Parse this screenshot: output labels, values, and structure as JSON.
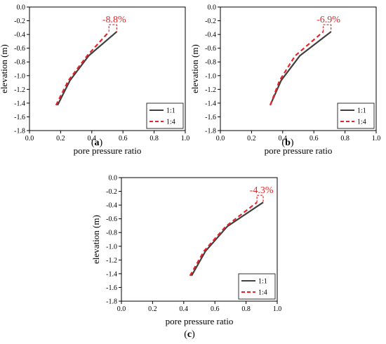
{
  "colors": {
    "series_1_1": "#404040",
    "series_1_4": "#e8242a",
    "annotation": "#e8242a"
  },
  "chart_data": [
    {
      "type": "line",
      "panel_label": "a",
      "xlabel": "pore pressure ratio",
      "ylabel": "elevation (m)",
      "xlim": [
        0.0,
        1.0
      ],
      "ylim": [
        -1.8,
        0.0
      ],
      "xticks": [
        "0.0",
        "0.2",
        "0.4",
        "0.6",
        "0.8",
        "1.0"
      ],
      "yticks": [
        "0.0",
        "-0.2",
        "-0.4",
        "-0.6",
        "-0.8",
        "-1.0",
        "-1.2",
        "-1.4",
        "-1.6",
        "-1.8"
      ],
      "legend_position": "lower-right",
      "grid": false,
      "series": [
        {
          "name": "1:1",
          "style": "solid",
          "x": [
            0.18,
            0.26,
            0.38,
            0.56
          ],
          "y": [
            -1.43,
            -1.07,
            -0.71,
            -0.36
          ]
        },
        {
          "name": "1:4",
          "style": "dashed",
          "x": [
            0.17,
            0.25,
            0.37,
            0.51
          ],
          "y": [
            -1.43,
            -1.07,
            -0.71,
            -0.36
          ]
        }
      ],
      "annotation": {
        "text": "-8.8%",
        "x1": 0.51,
        "x2": 0.56,
        "y": -0.36
      }
    },
    {
      "type": "line",
      "panel_label": "b",
      "xlabel": "pore pressure ratio",
      "ylabel": "elevation (m)",
      "xlim": [
        0.0,
        1.0
      ],
      "ylim": [
        -1.8,
        0.0
      ],
      "xticks": [
        "0.0",
        "0.2",
        "0.4",
        "0.6",
        "0.8",
        "1.0"
      ],
      "yticks": [
        "0.0",
        "-0.2",
        "-0.4",
        "-0.6",
        "-0.8",
        "-1.0",
        "-1.2",
        "-1.4",
        "-1.6",
        "-1.8"
      ],
      "legend_position": "lower-right",
      "grid": false,
      "series": [
        {
          "name": "1:1",
          "style": "solid",
          "x": [
            0.32,
            0.39,
            0.51,
            0.71
          ],
          "y": [
            -1.43,
            -1.07,
            -0.71,
            -0.36
          ]
        },
        {
          "name": "1:4",
          "style": "dashed",
          "x": [
            0.32,
            0.38,
            0.48,
            0.66
          ],
          "y": [
            -1.43,
            -1.07,
            -0.71,
            -0.36
          ]
        }
      ],
      "annotation": {
        "text": "-6.9%",
        "x1": 0.66,
        "x2": 0.71,
        "y": -0.36
      }
    },
    {
      "type": "line",
      "panel_label": "c",
      "xlabel": "pore pressure ratio",
      "ylabel": "elevation (m)",
      "xlim": [
        0.0,
        1.0
      ],
      "ylim": [
        -1.8,
        0.0
      ],
      "xticks": [
        "0.0",
        "0.2",
        "0.4",
        "0.6",
        "0.8",
        "1.0"
      ],
      "yticks": [
        "0.0",
        "-0.2",
        "-0.4",
        "-0.6",
        "-0.8",
        "-1.0",
        "-1.2",
        "-1.4",
        "-1.6",
        "-1.8"
      ],
      "legend_position": "lower-right",
      "grid": false,
      "series": [
        {
          "name": "1:1",
          "style": "solid",
          "x": [
            0.45,
            0.54,
            0.68,
            0.91
          ],
          "y": [
            -1.43,
            -1.07,
            -0.71,
            -0.36
          ]
        },
        {
          "name": "1:4",
          "style": "dashed",
          "x": [
            0.44,
            0.53,
            0.67,
            0.87
          ],
          "y": [
            -1.43,
            -1.07,
            -0.71,
            -0.36
          ]
        }
      ],
      "annotation": {
        "text": "-4.3%",
        "x1": 0.87,
        "x2": 0.91,
        "y": -0.36
      }
    }
  ]
}
